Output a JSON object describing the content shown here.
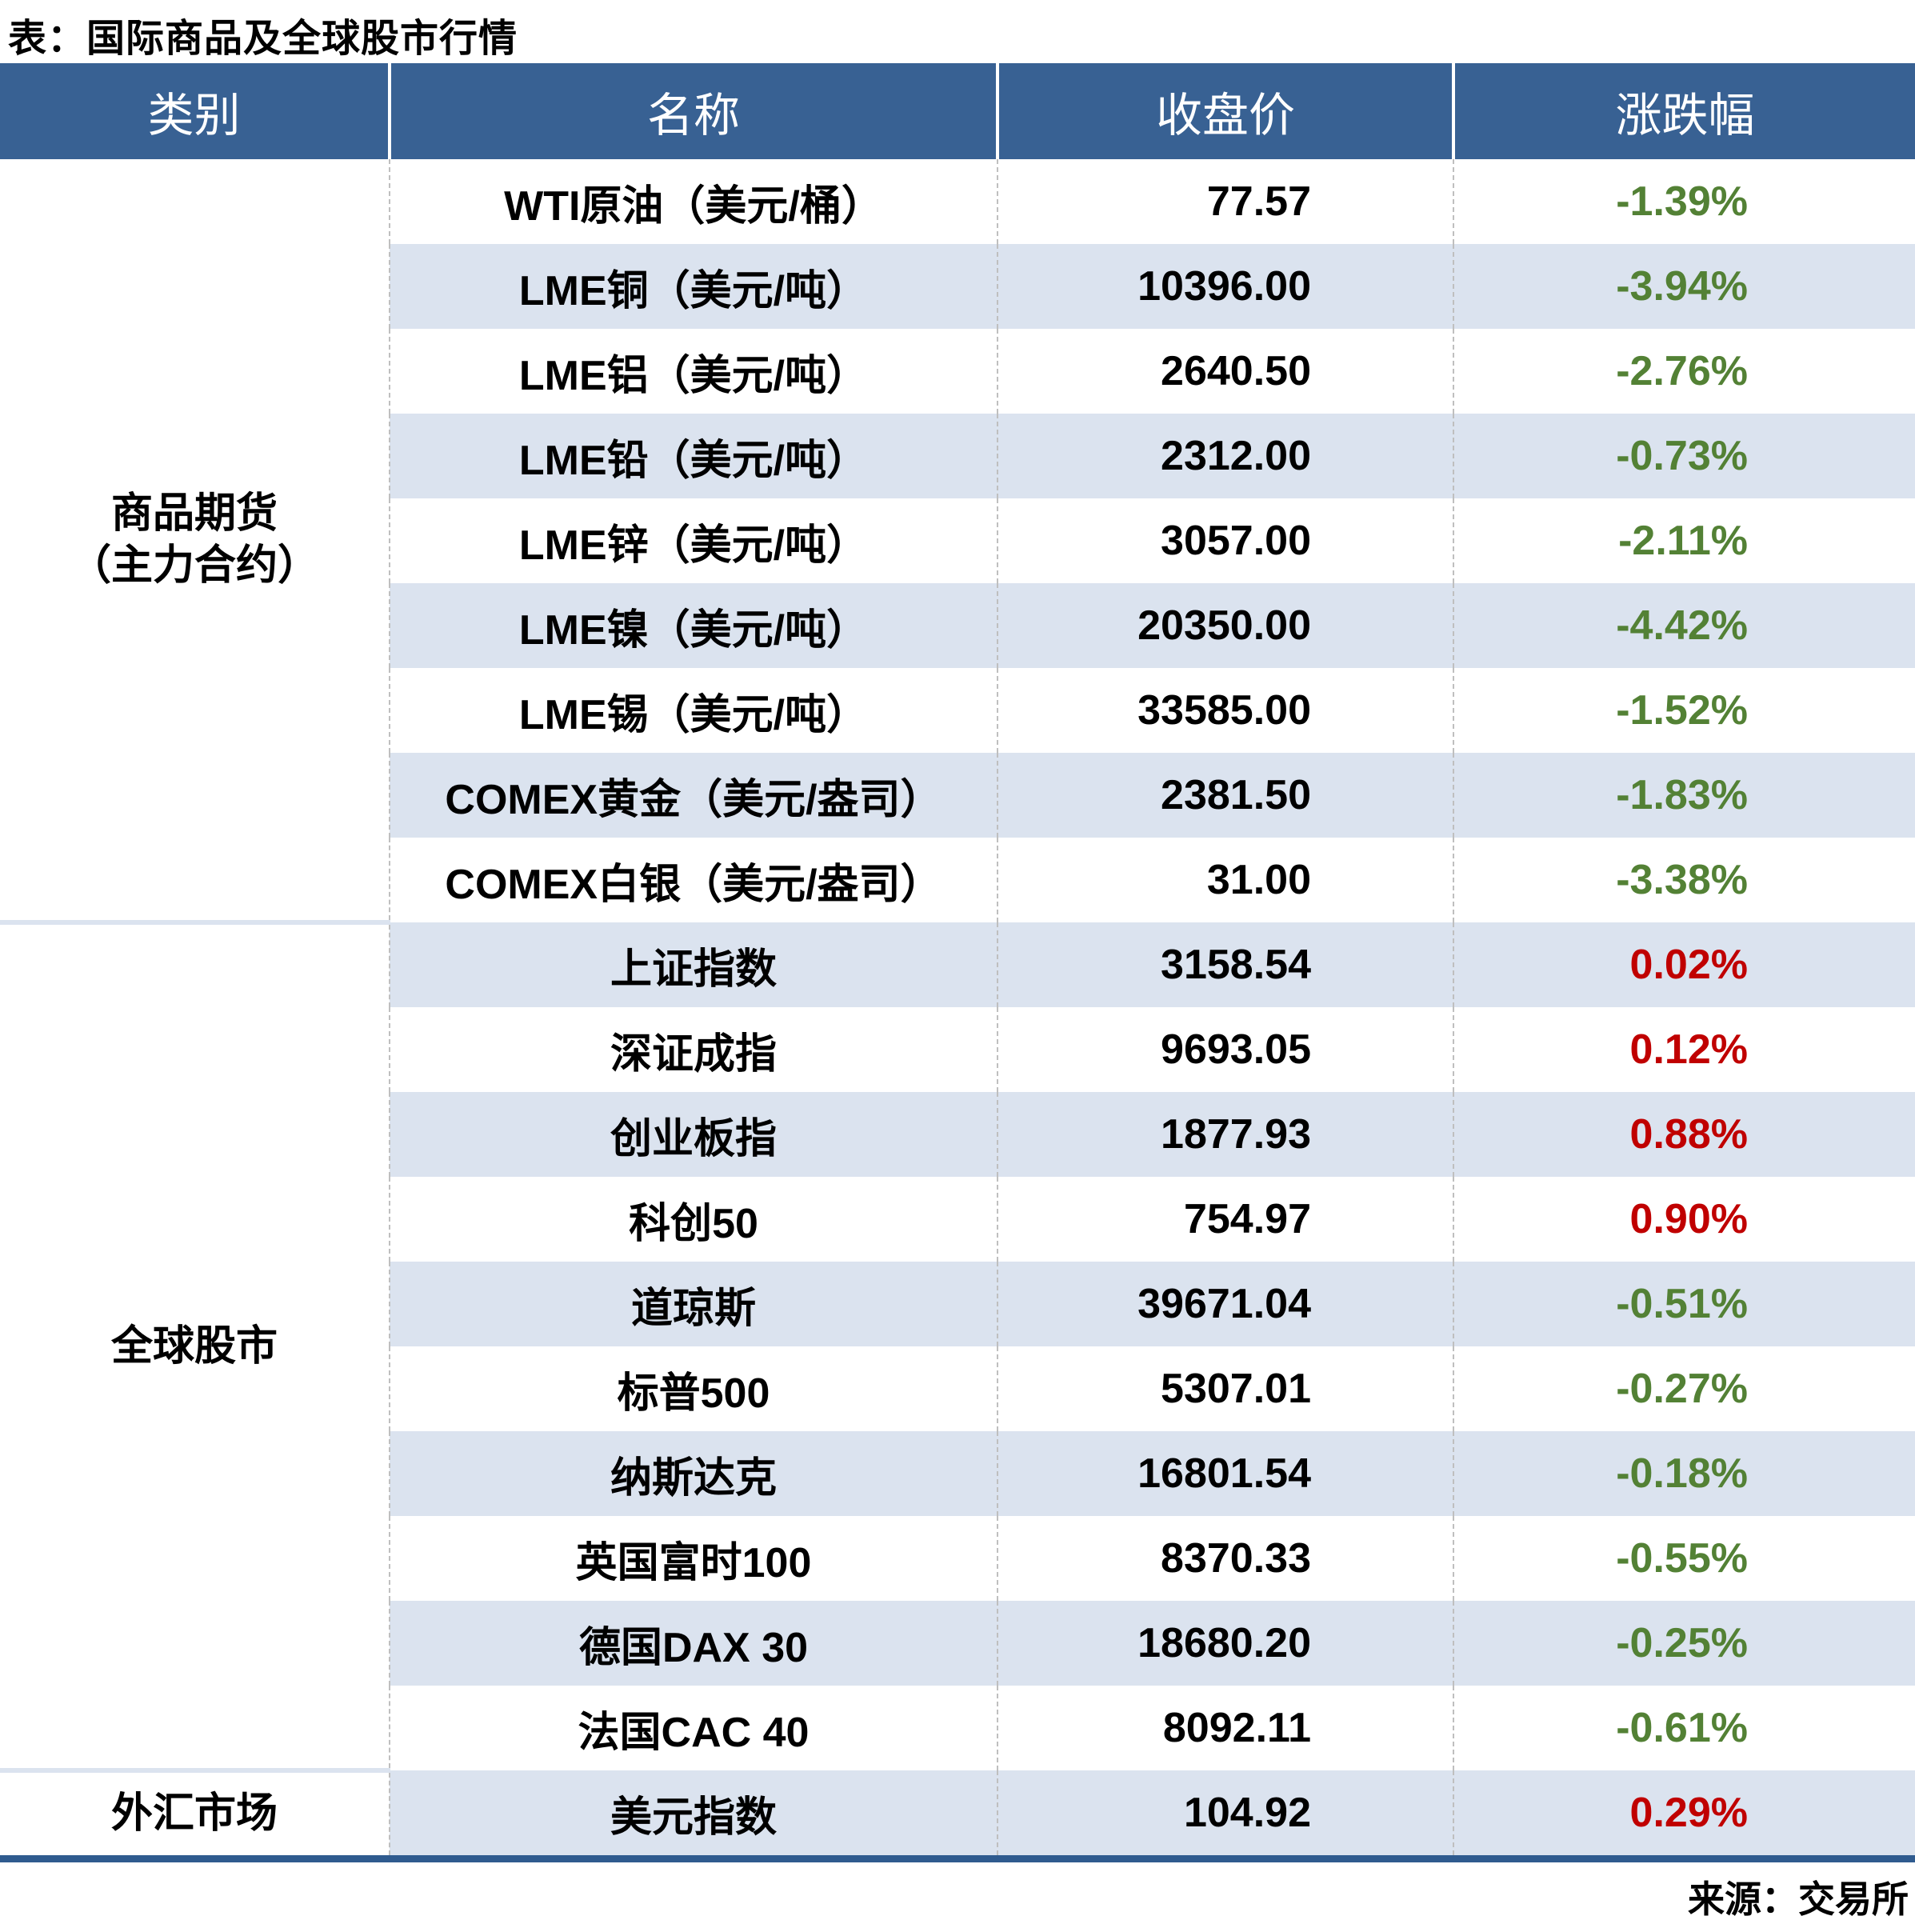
{
  "title": "表：国际商品及全球股市行情",
  "source": "来源：交易所",
  "colors": {
    "header_bg": "#386193",
    "band_blue": "#DBE3EF",
    "positive_red": "#C00000",
    "negative_green": "#538135",
    "bottom_bar": "#2F5B8F"
  },
  "table": {
    "headers": [
      "类别",
      "名称",
      "收盘价",
      "涨跌幅"
    ],
    "sections": [
      {
        "label": "商品期货（主力合约）",
        "lines": [
          "商品期货",
          "（主力合约）"
        ],
        "rowspan": 9
      },
      {
        "label": "全球股市",
        "rowspan": 10
      },
      {
        "label": "外汇市场",
        "rowspan": 1
      }
    ],
    "rows": [
      {
        "name": "WTI原油（美元/桶）",
        "close": "77.57",
        "change": "-1.39%"
      },
      {
        "name": "LME铜（美元/吨）",
        "close": "10396.00",
        "change": "-3.94%"
      },
      {
        "name": "LME铝（美元/吨）",
        "close": "2640.50",
        "change": "-2.76%"
      },
      {
        "name": "LME铅（美元/吨）",
        "close": "2312.00",
        "change": "-0.73%"
      },
      {
        "name": "LME锌（美元/吨）",
        "close": "3057.00",
        "change": "-2.11%"
      },
      {
        "name": "LME镍（美元/吨）",
        "close": "20350.00",
        "change": "-4.42%"
      },
      {
        "name": "LME锡（美元/吨）",
        "close": "33585.00",
        "change": "-1.52%"
      },
      {
        "name": "COMEX黄金（美元/盎司）",
        "close": "2381.50",
        "change": "-1.83%"
      },
      {
        "name": "COMEX白银（美元/盎司）",
        "close": "31.00",
        "change": "-3.38%"
      },
      {
        "name": "上证指数",
        "close": "3158.54",
        "change": "0.02%"
      },
      {
        "name": "深证成指",
        "close": "9693.05",
        "change": "0.12%"
      },
      {
        "name": "创业板指",
        "close": "1877.93",
        "change": "0.88%"
      },
      {
        "name": "科创50",
        "close": "754.97",
        "change": "0.90%"
      },
      {
        "name": "道琼斯",
        "close": "39671.04",
        "change": "-0.51%"
      },
      {
        "name": "标普500",
        "close": "5307.01",
        "change": "-0.27%"
      },
      {
        "name": "纳斯达克",
        "close": "16801.54",
        "change": "-0.18%"
      },
      {
        "name": "英国富时100",
        "close": "8370.33",
        "change": "-0.55%"
      },
      {
        "name": "德国DAX 30",
        "close": "18680.20",
        "change": "-0.25%"
      },
      {
        "name": "法国CAC 40",
        "close": "8092.11",
        "change": "-0.61%"
      },
      {
        "name": "美元指数",
        "close": "104.92",
        "change": "0.29%"
      }
    ]
  }
}
